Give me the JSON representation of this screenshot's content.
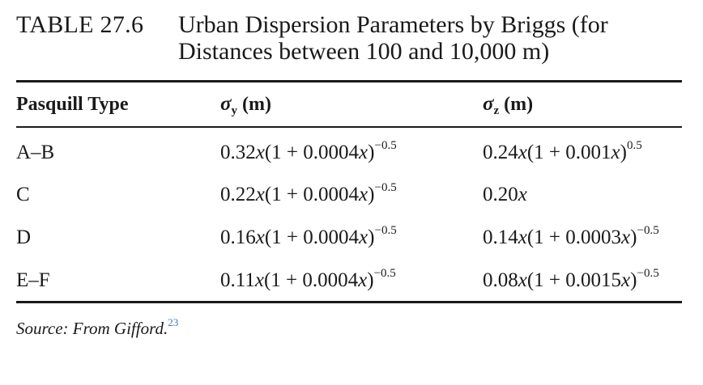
{
  "table": {
    "label": "TABLE 27.6",
    "title_line1": "Urban Dispersion Parameters by Briggs (for",
    "title_line2": "Distances between 100 and 10,000 m)",
    "headers": {
      "col1": "Pasquill Type",
      "col2_symbol": "σ",
      "col2_subscript": "y",
      "col2_unit": "(m)",
      "col3_symbol": "σ",
      "col3_subscript": "z",
      "col3_unit": "(m)"
    },
    "rows": [
      {
        "type": "A–B",
        "sigma_y": {
          "coef": "0.32",
          "var": "x",
          "open": "(1 + 0.0004",
          "var2": "x",
          "close": ")",
          "exp": "−0.5"
        },
        "sigma_z": {
          "coef": "0.24",
          "var": "x",
          "open": "(1 + 0.001",
          "var2": "x",
          "close": ")",
          "exp": "0.5"
        }
      },
      {
        "type": "C",
        "sigma_y": {
          "coef": "0.22",
          "var": "x",
          "open": "(1 + 0.0004",
          "var2": "x",
          "close": ")",
          "exp": "−0.5"
        },
        "sigma_z": {
          "coef": "0.20",
          "var": "x",
          "open": "",
          "var2": "",
          "close": "",
          "exp": ""
        }
      },
      {
        "type": "D",
        "sigma_y": {
          "coef": "0.16",
          "var": "x",
          "open": "(1 + 0.0004",
          "var2": "x",
          "close": ")",
          "exp": "−0.5"
        },
        "sigma_z": {
          "coef": "0.14",
          "var": "x",
          "open": "(1 + 0.0003",
          "var2": "x",
          "close": ")",
          "exp": "−0.5"
        }
      },
      {
        "type": "E–F",
        "sigma_y": {
          "coef": "0.11",
          "var": "x",
          "open": "(1 + 0.0004",
          "var2": "x",
          "close": ")",
          "exp": "−0.5"
        },
        "sigma_z": {
          "coef": "0.08",
          "var": "x",
          "open": "(1 + 0.0015",
          "var2": "x",
          "close": ")",
          "exp": "−0.5"
        }
      }
    ],
    "source_text": "Source: From Gifford.",
    "source_ref": "23"
  }
}
